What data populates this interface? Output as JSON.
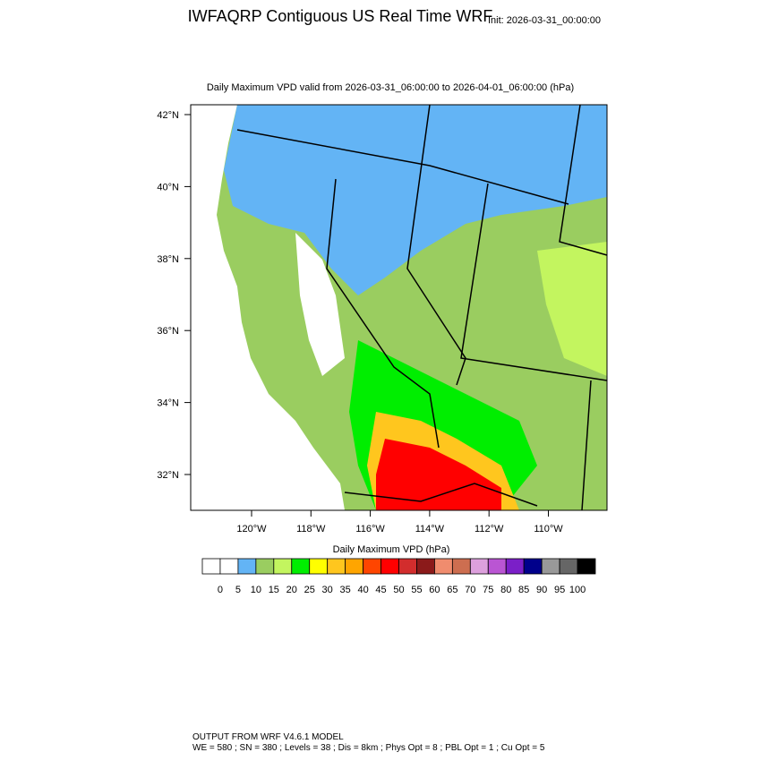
{
  "header": {
    "title": "IWFAQRP Contiguous US Real Time WRF",
    "init": "Init: 2026-03-31_00:00:00"
  },
  "map": {
    "subtitle": "Daily Maximum VPD valid from 2026-03-31_06:00:00 to 2026-04-01_06:00:00   (hPa)",
    "lat_labels": [
      "42°N",
      "40°N",
      "38°N",
      "36°N",
      "34°N",
      "32°N"
    ],
    "lon_labels": [
      "120°W",
      "118°W",
      "116°W",
      "114°W",
      "112°W",
      "110°W"
    ]
  },
  "colorbar": {
    "label": "Daily Maximum VPD  (hPa)",
    "colors": [
      "#ffffff",
      "#ffffff",
      "#63b4f5",
      "#9acd60",
      "#c3f55f",
      "#00ee00",
      "#ffff00",
      "#ffc61e",
      "#ffa500",
      "#ff4500",
      "#ff0000",
      "#d22d2d",
      "#8b1a1a",
      "#f08c6e",
      "#cd6e50",
      "#dda0dd",
      "#ba55d3",
      "#7b1fc8",
      "#00008b",
      "#999999",
      "#666666",
      "#000000"
    ],
    "ticks": [
      0,
      5,
      10,
      15,
      20,
      25,
      30,
      35,
      40,
      45,
      50,
      55,
      60,
      65,
      70,
      75,
      80,
      85,
      90,
      95,
      100
    ]
  },
  "footer": {
    "lines": [
      "OUTPUT FROM WRF V4.6.1 MODEL",
      "WE = 580 ; SN = 380 ; Levels = 38 ; Dis = 8km ; Phys Opt = 8 ; PBL Opt = 1 ; Cu Opt = 5"
    ]
  }
}
